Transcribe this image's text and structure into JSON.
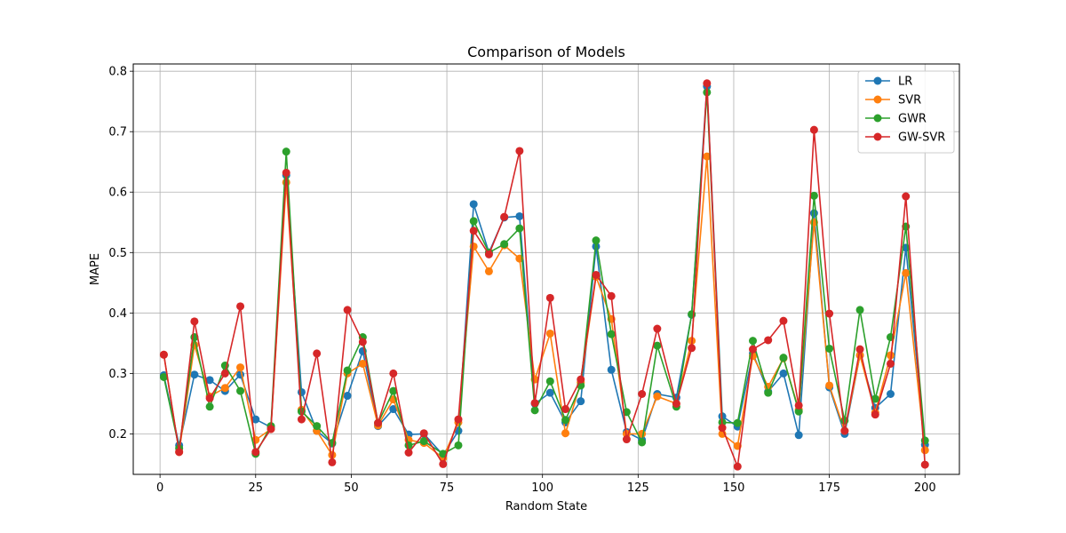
{
  "chart_data": {
    "type": "line",
    "title": "Comparison of Models",
    "xlabel": "Random State",
    "ylabel": "MAPE",
    "xlim": [
      -7,
      209
    ],
    "ylim": [
      0.133,
      0.812
    ],
    "xticks": [
      0,
      25,
      50,
      75,
      100,
      125,
      150,
      175,
      200
    ],
    "yticks": [
      0.2,
      0.3,
      0.4,
      0.5,
      0.6,
      0.7,
      0.8
    ],
    "grid": true,
    "legend_position": "top-right",
    "x": [
      1,
      5,
      9,
      13,
      17,
      21,
      25,
      29,
      33,
      37,
      41,
      45,
      49,
      53,
      57,
      61,
      65,
      69,
      74,
      78,
      82,
      86,
      90,
      94,
      98,
      102,
      106,
      110,
      114,
      118,
      122,
      126,
      130,
      135,
      139,
      143,
      147,
      151,
      155,
      159,
      163,
      167,
      171,
      175,
      179,
      183,
      187,
      191,
      195,
      200
    ],
    "series": [
      {
        "name": "LR",
        "color": "#1f77b4",
        "values": [
          0.297,
          0.181,
          0.298,
          0.289,
          0.271,
          0.298,
          0.224,
          0.211,
          0.628,
          0.269,
          0.205,
          0.184,
          0.263,
          0.337,
          0.213,
          0.241,
          0.199,
          0.2,
          0.165,
          0.205,
          0.58,
          0.5,
          0.558,
          0.56,
          0.25,
          0.268,
          0.219,
          0.254,
          0.51,
          0.306,
          0.203,
          0.19,
          0.266,
          0.26,
          0.397,
          0.775,
          0.229,
          0.212,
          0.333,
          0.27,
          0.3,
          0.198,
          0.565,
          0.277,
          0.2,
          0.33,
          0.243,
          0.266,
          0.508,
          0.182
        ]
      },
      {
        "name": "SVR",
        "color": "#ff7f0e",
        "values": [
          0.331,
          0.17,
          0.347,
          0.262,
          0.276,
          0.31,
          0.19,
          0.208,
          0.616,
          0.24,
          0.205,
          0.165,
          0.3,
          0.316,
          0.214,
          0.257,
          0.19,
          0.185,
          0.16,
          0.219,
          0.51,
          0.469,
          0.512,
          0.49,
          0.29,
          0.366,
          0.201,
          0.285,
          0.46,
          0.39,
          0.2,
          0.2,
          0.262,
          0.25,
          0.354,
          0.659,
          0.2,
          0.18,
          0.329,
          0.278,
          0.325,
          0.24,
          0.55,
          0.28,
          0.205,
          0.33,
          0.235,
          0.33,
          0.466,
          0.173
        ]
      },
      {
        "name": "GWR",
        "color": "#2ca02c",
        "values": [
          0.294,
          0.176,
          0.36,
          0.245,
          0.313,
          0.271,
          0.167,
          0.213,
          0.667,
          0.237,
          0.213,
          0.185,
          0.305,
          0.36,
          0.218,
          0.271,
          0.181,
          0.188,
          0.167,
          0.181,
          0.552,
          0.5,
          0.514,
          0.54,
          0.239,
          0.287,
          0.223,
          0.28,
          0.52,
          0.365,
          0.236,
          0.186,
          0.346,
          0.245,
          0.398,
          0.765,
          0.219,
          0.218,
          0.354,
          0.268,
          0.326,
          0.237,
          0.594,
          0.341,
          0.222,
          0.405,
          0.258,
          0.36,
          0.543,
          0.189
        ]
      },
      {
        "name": "GW-SVR",
        "color": "#d62728",
        "values": [
          0.331,
          0.17,
          0.386,
          0.259,
          0.3,
          0.411,
          0.17,
          0.208,
          0.632,
          0.224,
          0.333,
          0.153,
          0.405,
          0.352,
          0.218,
          0.3,
          0.169,
          0.201,
          0.15,
          0.224,
          0.536,
          0.497,
          0.559,
          0.668,
          0.251,
          0.425,
          0.241,
          0.29,
          0.463,
          0.428,
          0.191,
          0.266,
          0.374,
          0.25,
          0.342,
          0.78,
          0.21,
          0.146,
          0.34,
          0.355,
          0.387,
          0.247,
          0.703,
          0.399,
          0.205,
          0.34,
          0.232,
          0.316,
          0.593,
          0.149
        ]
      }
    ]
  }
}
